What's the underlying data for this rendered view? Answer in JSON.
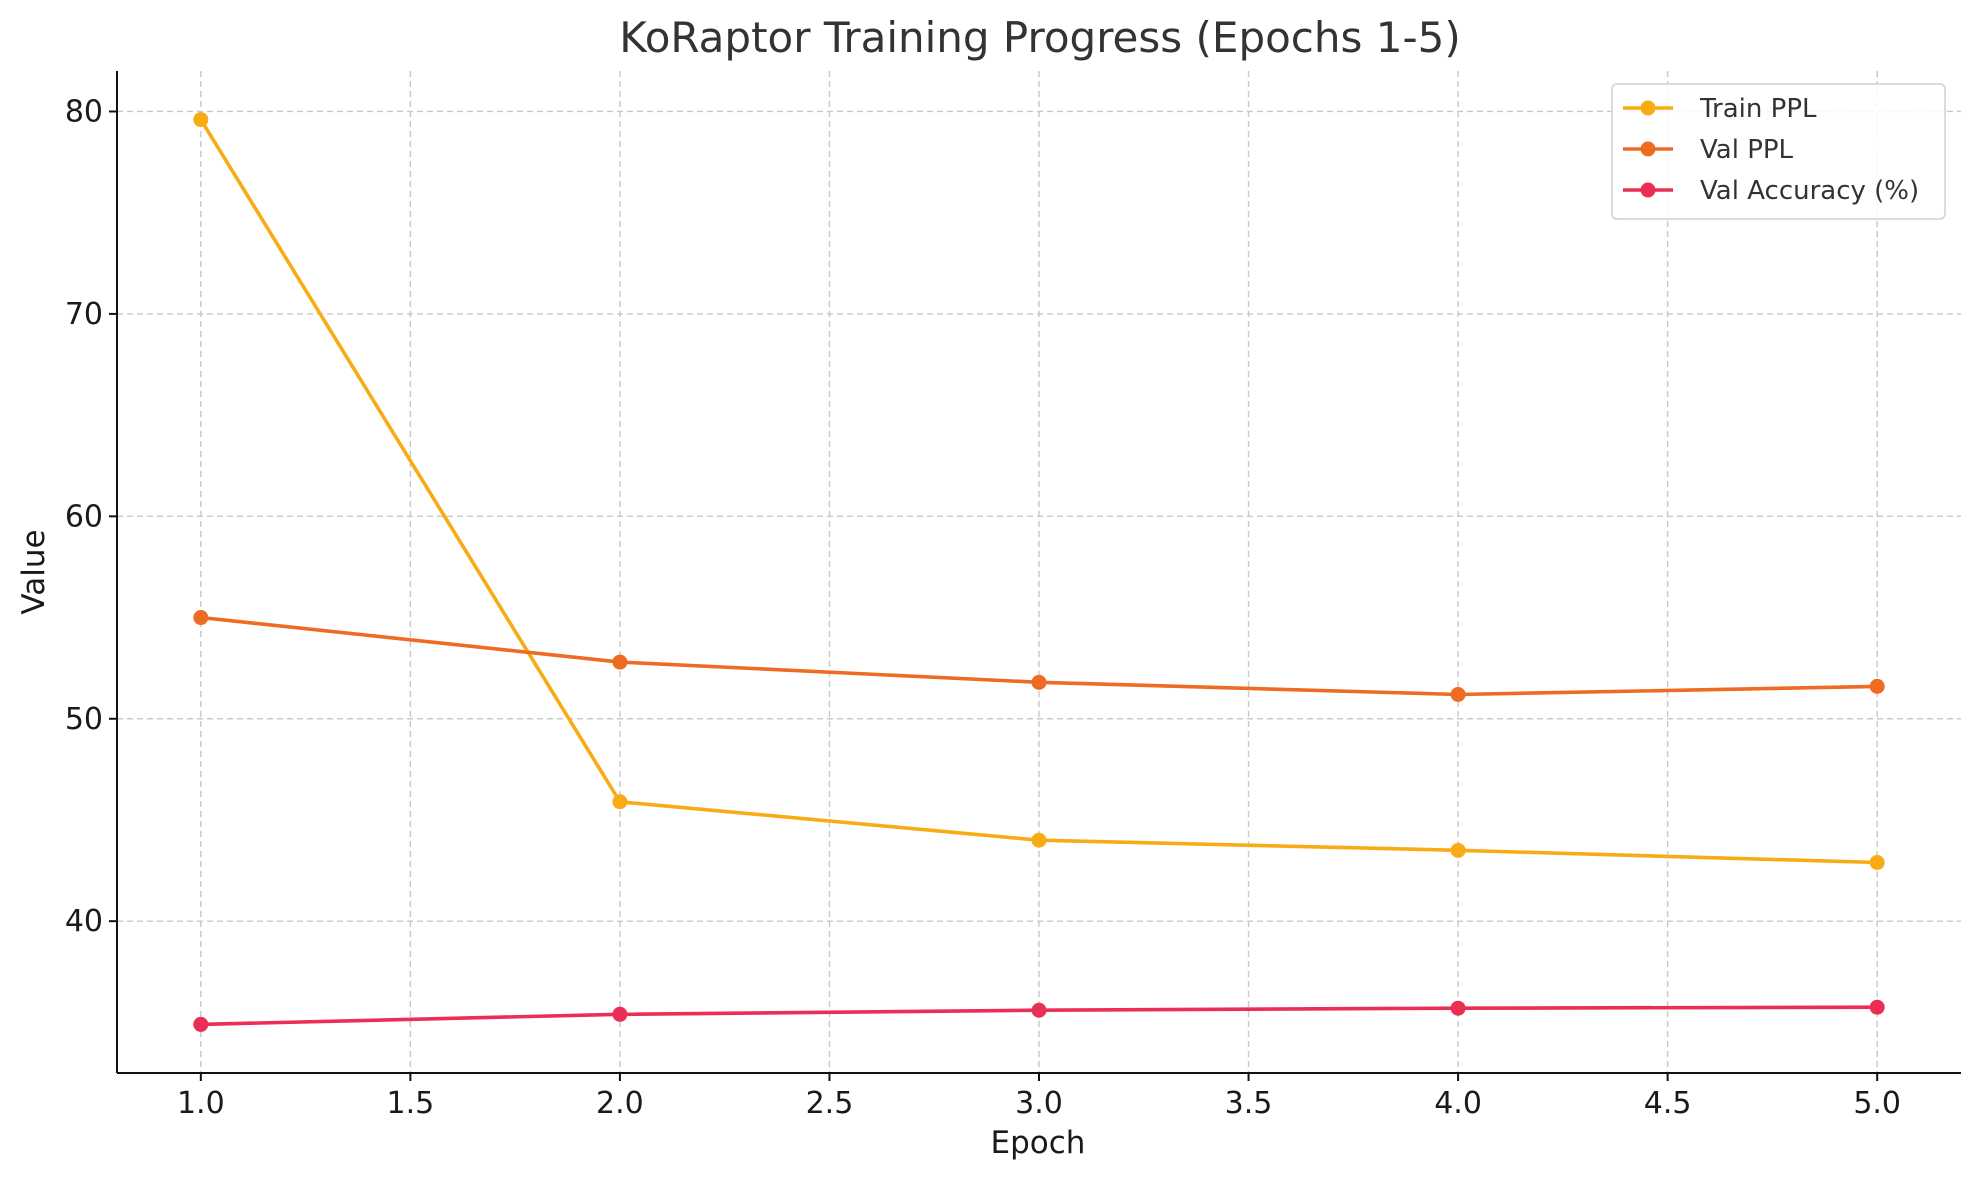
{
  "chart_data": {
    "type": "line",
    "title": "KoRaptor Training Progress (Epochs 1-5)",
    "xlabel": "Epoch",
    "ylabel": "Value",
    "xlim": [
      0.8,
      5.2
    ],
    "ylim": [
      32.5,
      82
    ],
    "x_ticks": [
      "1.0",
      "1.5",
      "2.0",
      "2.5",
      "3.0",
      "3.5",
      "4.0",
      "4.5",
      "5.0"
    ],
    "y_ticks": [
      "40",
      "50",
      "60",
      "70",
      "80"
    ],
    "grid": true,
    "legend_position": "top-right",
    "x": [
      1,
      2,
      3,
      4,
      5
    ],
    "series": [
      {
        "name": "Train PPL",
        "color": "#f9ab14",
        "values": [
          79.6,
          45.9,
          44.0,
          43.5,
          42.9
        ]
      },
      {
        "name": "Val PPL",
        "color": "#ee6b22",
        "values": [
          55.0,
          52.8,
          51.8,
          51.2,
          51.6
        ]
      },
      {
        "name": "Val Accuracy (%)",
        "color": "#ea2e55",
        "values": [
          34.9,
          35.4,
          35.6,
          35.7,
          35.75
        ]
      }
    ]
  }
}
